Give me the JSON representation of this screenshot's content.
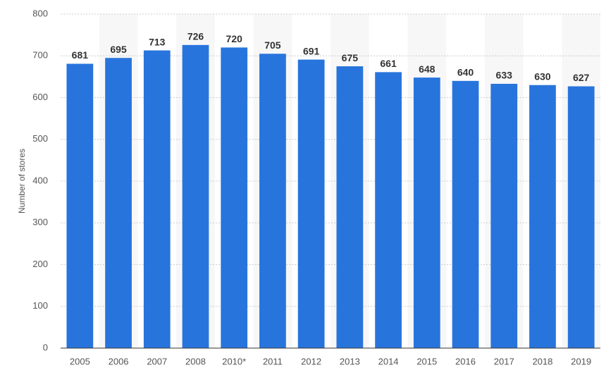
{
  "chart_data": {
    "type": "bar",
    "y_axis_label": "Number of stores",
    "categories": [
      "2005",
      "2006",
      "2007",
      "2008",
      "2010*",
      "2011",
      "2012",
      "2013",
      "2014",
      "2015",
      "2016",
      "2017",
      "2018",
      "2019"
    ],
    "values": [
      681,
      695,
      713,
      726,
      720,
      705,
      691,
      675,
      661,
      648,
      640,
      633,
      630,
      627
    ],
    "color": "#2874dd",
    "ylim": [
      0,
      800
    ],
    "yticks": [
      0,
      100,
      200,
      300,
      400,
      500,
      600,
      700,
      800
    ],
    "grid": true
  }
}
